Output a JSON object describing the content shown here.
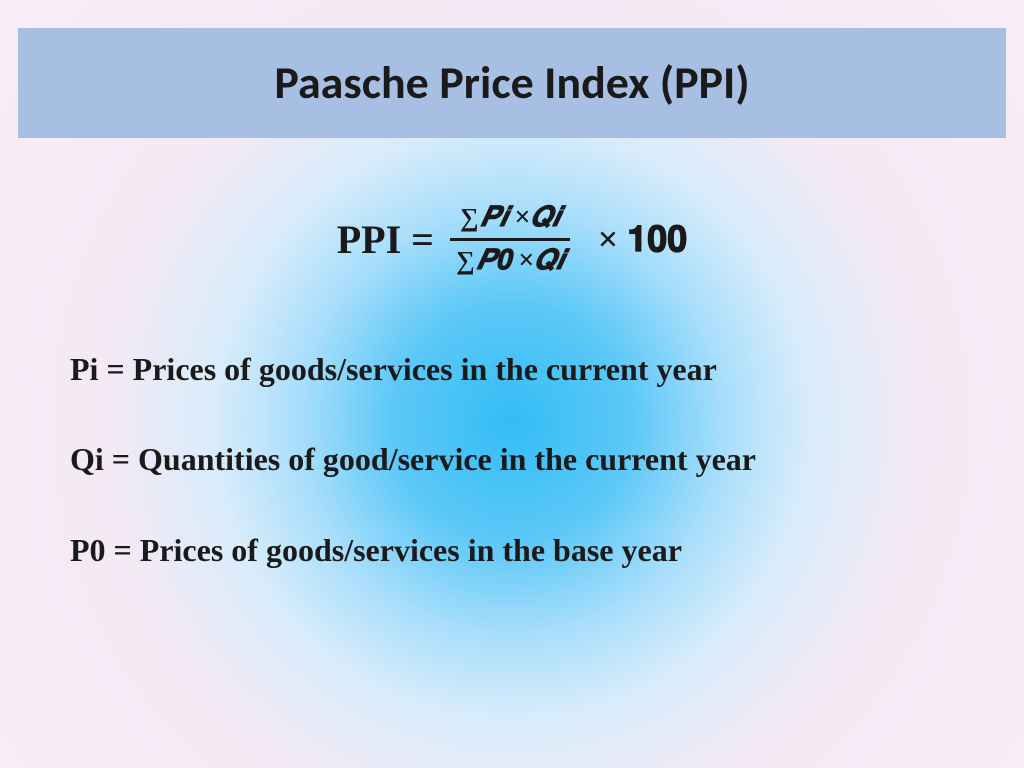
{
  "slide": {
    "title": "Paasche Price Index (PPI)",
    "formula": {
      "lhs": "PPI = ",
      "numerator": "𝑷𝒊 ×𝑸𝒊",
      "denominator": "𝑷𝟎 ×𝑸𝒊",
      "rhs": " × 𝟏𝟎𝟎"
    },
    "definitions": [
      "Pi = Prices of goods/services in the current year",
      "Qi = Quantities of  good/service in the current year",
      "P0 = Prices of  goods/services in the base year"
    ]
  },
  "style": {
    "title_bar_bg": "#a6bfe3",
    "title_fontsize": 46,
    "title_font": "Calibri",
    "title_color": "#1a1a1a",
    "body_font": "Times New Roman",
    "body_fontsize": 32,
    "formula_lhs_fontsize": 40,
    "formula_frac_fontsize": 28,
    "formula_rhs_fontsize": 36,
    "background_center": "#33bdf5",
    "background_outer": "#f8eef7",
    "text_color": "#1a1a1a"
  }
}
